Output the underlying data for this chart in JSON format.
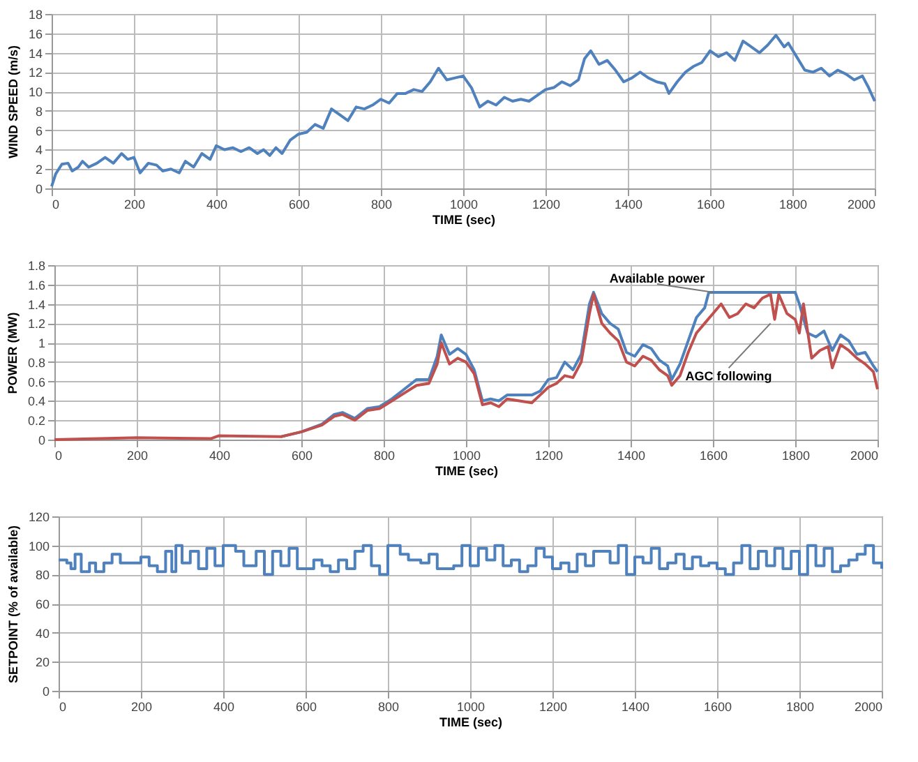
{
  "chart_data": [
    {
      "type": "line",
      "xlabel": "TIME (sec)",
      "ylabel": "WIND SPEED (m/s)",
      "xlim": [
        0,
        2000
      ],
      "xticks": [
        0,
        200,
        400,
        600,
        800,
        1000,
        1200,
        1400,
        1600,
        1800,
        2000
      ],
      "ylim": [
        0,
        18
      ],
      "yticks": [
        0,
        2,
        4,
        6,
        8,
        10,
        12,
        14,
        16,
        18
      ],
      "grid": true,
      "marker": "none",
      "line_style": "solid",
      "series": [
        {
          "color": "#4f81bd",
          "x": [
            0,
            10,
            25,
            40,
            50,
            65,
            75,
            90,
            110,
            130,
            150,
            170,
            185,
            200,
            215,
            235,
            255,
            270,
            290,
            310,
            325,
            345,
            365,
            385,
            400,
            420,
            440,
            460,
            480,
            500,
            515,
            530,
            545,
            560,
            580,
            600,
            620,
            640,
            660,
            680,
            700,
            720,
            740,
            760,
            780,
            800,
            820,
            840,
            860,
            880,
            900,
            920,
            940,
            960,
            980,
            1000,
            1020,
            1040,
            1060,
            1080,
            1100,
            1120,
            1140,
            1160,
            1180,
            1200,
            1220,
            1240,
            1260,
            1280,
            1295,
            1310,
            1330,
            1350,
            1370,
            1390,
            1410,
            1430,
            1450,
            1470,
            1490,
            1500,
            1520,
            1540,
            1560,
            1580,
            1600,
            1620,
            1640,
            1660,
            1680,
            1700,
            1720,
            1740,
            1760,
            1780,
            1790,
            1810,
            1830,
            1850,
            1870,
            1890,
            1910,
            1930,
            1950,
            1970,
            1985,
            2000
          ],
          "values": [
            0.2,
            1.5,
            2.5,
            2.6,
            1.8,
            2.2,
            2.8,
            2.2,
            2.6,
            3.2,
            2.6,
            3.6,
            3.0,
            3.2,
            1.6,
            2.6,
            2.4,
            1.8,
            2.0,
            1.6,
            2.8,
            2.2,
            3.6,
            3.0,
            4.4,
            4.0,
            4.2,
            3.8,
            4.2,
            3.6,
            4.0,
            3.4,
            4.2,
            3.6,
            5.0,
            5.6,
            5.8,
            6.6,
            6.2,
            8.2,
            7.6,
            7.0,
            8.4,
            8.2,
            8.6,
            9.2,
            8.8,
            9.8,
            9.8,
            10.2,
            10.0,
            11.0,
            12.4,
            11.2,
            11.4,
            11.6,
            10.4,
            8.4,
            9.0,
            8.6,
            9.4,
            9.0,
            9.2,
            9.0,
            9.6,
            10.2,
            10.4,
            11.0,
            10.6,
            11.2,
            13.4,
            14.2,
            12.8,
            13.2,
            12.2,
            11.0,
            11.4,
            12.0,
            11.4,
            11.0,
            10.8,
            9.8,
            11.0,
            12.0,
            12.6,
            13.0,
            14.2,
            13.6,
            14.0,
            13.2,
            15.2,
            14.6,
            14.0,
            14.8,
            15.8,
            14.6,
            15.0,
            13.6,
            12.2,
            12.0,
            12.4,
            11.6,
            12.2,
            11.8,
            11.2,
            11.6,
            10.4,
            9.0
          ]
        }
      ]
    },
    {
      "type": "line",
      "xlabel": "TIME (sec)",
      "ylabel": "POWER (MW)",
      "xlim": [
        0,
        2000
      ],
      "xticks": [
        0,
        200,
        400,
        600,
        800,
        1000,
        1200,
        1400,
        1600,
        1800,
        2000
      ],
      "ylim": [
        0,
        1.8
      ],
      "yticks": [
        0,
        0.2,
        0.4,
        0.6,
        0.8,
        1,
        1.2,
        1.4,
        1.6,
        1.8
      ],
      "grid": true,
      "marker": "none",
      "line_style": "solid",
      "annotations": [
        {
          "text": "Available power",
          "x": 1600,
          "y": 1.52
        },
        {
          "text": "AGC following",
          "x": 1740,
          "y": 1.2
        }
      ],
      "series": [
        {
          "color": "#4f81bd",
          "x": [
            550,
            600,
            650,
            680,
            700,
            730,
            760,
            790,
            820,
            850,
            880,
            910,
            930,
            940,
            960,
            980,
            1000,
            1020,
            1040,
            1060,
            1080,
            1100,
            1130,
            1160,
            1180,
            1200,
            1220,
            1240,
            1260,
            1280,
            1300,
            1310,
            1330,
            1350,
            1370,
            1390,
            1410,
            1430,
            1450,
            1470,
            1490,
            1500,
            1520,
            1540,
            1560,
            1580,
            1590,
            1800,
            1810,
            1830,
            1850,
            1870,
            1890,
            1910,
            1930,
            1950,
            1970,
            1990,
            2000
          ],
          "values": [
            0.03,
            0.08,
            0.16,
            0.26,
            0.28,
            0.22,
            0.32,
            0.34,
            0.42,
            0.52,
            0.62,
            0.62,
            0.86,
            1.08,
            0.88,
            0.94,
            0.88,
            0.72,
            0.4,
            0.42,
            0.4,
            0.46,
            0.46,
            0.46,
            0.5,
            0.62,
            0.64,
            0.8,
            0.72,
            0.88,
            1.4,
            1.52,
            1.3,
            1.2,
            1.14,
            0.9,
            0.86,
            0.98,
            0.94,
            0.82,
            0.76,
            0.62,
            0.78,
            1.02,
            1.26,
            1.36,
            1.52,
            1.52,
            1.4,
            1.1,
            1.06,
            1.12,
            0.92,
            1.08,
            1.02,
            0.88,
            0.9,
            0.76,
            0.7
          ]
        },
        {
          "color": "#c0504d",
          "x": [
            0,
            200,
            380,
            400,
            550,
            600,
            650,
            680,
            700,
            730,
            760,
            790,
            820,
            850,
            880,
            910,
            930,
            940,
            960,
            980,
            1000,
            1020,
            1040,
            1060,
            1080,
            1100,
            1130,
            1160,
            1180,
            1200,
            1220,
            1240,
            1260,
            1280,
            1300,
            1310,
            1330,
            1350,
            1370,
            1390,
            1410,
            1430,
            1450,
            1470,
            1490,
            1500,
            1520,
            1540,
            1560,
            1580,
            1600,
            1620,
            1640,
            1660,
            1680,
            1700,
            1720,
            1740,
            1750,
            1760,
            1780,
            1800,
            1810,
            1820,
            1840,
            1860,
            1880,
            1890,
            1910,
            1930,
            1950,
            1970,
            1990,
            2000
          ],
          "values": [
            0,
            0.02,
            0.01,
            0.04,
            0.03,
            0.08,
            0.15,
            0.24,
            0.26,
            0.2,
            0.3,
            0.32,
            0.4,
            0.48,
            0.56,
            0.58,
            0.78,
            1.0,
            0.78,
            0.84,
            0.8,
            0.68,
            0.36,
            0.38,
            0.34,
            0.42,
            0.4,
            0.38,
            0.46,
            0.54,
            0.58,
            0.66,
            0.64,
            0.8,
            1.3,
            1.5,
            1.2,
            1.1,
            1.02,
            0.8,
            0.76,
            0.86,
            0.82,
            0.72,
            0.66,
            0.56,
            0.66,
            0.9,
            1.1,
            1.2,
            1.3,
            1.4,
            1.26,
            1.3,
            1.4,
            1.36,
            1.46,
            1.5,
            1.24,
            1.5,
            1.3,
            1.24,
            1.1,
            1.4,
            0.84,
            0.92,
            0.96,
            0.74,
            0.98,
            0.92,
            0.84,
            0.78,
            0.7,
            0.52
          ]
        }
      ]
    },
    {
      "type": "step",
      "xlabel": "TIME (sec)",
      "ylabel": "SETPOINT  (% of available)",
      "xlim": [
        0,
        2000
      ],
      "xticks": [
        0,
        200,
        400,
        600,
        800,
        1000,
        1200,
        1400,
        1600,
        1800,
        2000
      ],
      "ylim": [
        0,
        120
      ],
      "yticks": [
        0,
        20,
        40,
        60,
        80,
        100,
        120
      ],
      "grid": true,
      "marker": "none",
      "line_style": "solid",
      "series": [
        {
          "color": "#4f81bd",
          "x": [
            0,
            20,
            30,
            40,
            55,
            75,
            90,
            110,
            130,
            150,
            200,
            220,
            240,
            260,
            275,
            285,
            300,
            320,
            340,
            360,
            380,
            400,
            430,
            450,
            480,
            500,
            520,
            540,
            560,
            580,
            620,
            640,
            660,
            680,
            700,
            720,
            740,
            760,
            780,
            800,
            830,
            850,
            880,
            900,
            920,
            960,
            980,
            1000,
            1020,
            1040,
            1060,
            1080,
            1100,
            1120,
            1140,
            1160,
            1180,
            1200,
            1220,
            1240,
            1260,
            1280,
            1300,
            1340,
            1360,
            1380,
            1400,
            1420,
            1440,
            1460,
            1480,
            1500,
            1520,
            1540,
            1560,
            1580,
            1600,
            1620,
            1640,
            1660,
            1680,
            1700,
            1720,
            1740,
            1760,
            1780,
            1800,
            1820,
            1840,
            1860,
            1880,
            1900,
            1920,
            1940,
            1960,
            1980,
            2000
          ],
          "values": [
            90,
            88,
            84,
            94,
            82,
            88,
            82,
            88,
            94,
            88,
            92,
            86,
            82,
            96,
            82,
            100,
            88,
            96,
            84,
            98,
            86,
            100,
            96,
            86,
            96,
            80,
            96,
            86,
            98,
            84,
            90,
            86,
            82,
            90,
            84,
            96,
            100,
            86,
            80,
            100,
            94,
            90,
            88,
            94,
            84,
            86,
            100,
            86,
            98,
            90,
            100,
            86,
            90,
            82,
            86,
            98,
            92,
            84,
            88,
            82,
            94,
            86,
            96,
            88,
            100,
            80,
            92,
            88,
            98,
            84,
            88,
            94,
            84,
            92,
            86,
            88,
            84,
            80,
            88,
            100,
            84,
            96,
            86,
            98,
            84,
            96,
            80,
            100,
            86,
            98,
            82,
            86,
            90,
            94,
            100,
            88,
            84
          ]
        }
      ]
    }
  ]
}
